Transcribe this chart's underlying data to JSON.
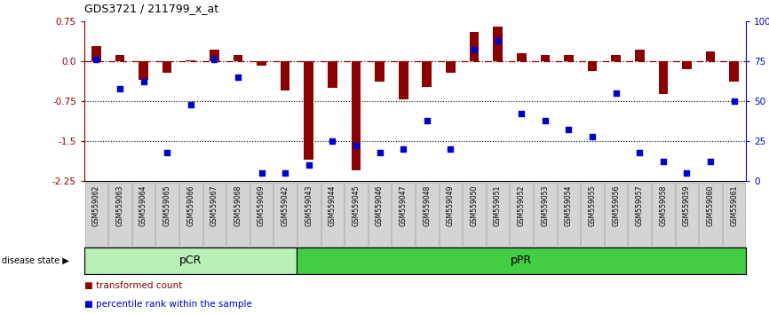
{
  "title": "GDS3721 / 211799_x_at",
  "samples": [
    "GSM559062",
    "GSM559063",
    "GSM559064",
    "GSM559065",
    "GSM559066",
    "GSM559067",
    "GSM559068",
    "GSM559069",
    "GSM559042",
    "GSM559043",
    "GSM559044",
    "GSM559045",
    "GSM559046",
    "GSM559047",
    "GSM559048",
    "GSM559049",
    "GSM559050",
    "GSM559051",
    "GSM559052",
    "GSM559053",
    "GSM559054",
    "GSM559055",
    "GSM559056",
    "GSM559057",
    "GSM559058",
    "GSM559059",
    "GSM559060",
    "GSM559061"
  ],
  "red_values": [
    0.28,
    0.12,
    -0.35,
    -0.22,
    0.02,
    0.22,
    0.12,
    -0.08,
    -0.55,
    -1.85,
    -0.5,
    -2.05,
    -0.38,
    -0.72,
    -0.48,
    -0.22,
    0.55,
    0.65,
    0.15,
    0.12,
    0.12,
    -0.18,
    0.12,
    0.22,
    -0.62,
    -0.15,
    0.18,
    -0.38
  ],
  "blue_values": [
    76,
    58,
    62,
    18,
    48,
    76,
    65,
    5,
    5,
    10,
    25,
    22,
    18,
    20,
    38,
    20,
    82,
    88,
    42,
    38,
    32,
    28,
    55,
    18,
    12,
    5,
    12,
    50
  ],
  "pcr_count": 9,
  "ppr_count": 19,
  "ylim_left": [
    -2.25,
    0.75
  ],
  "ylim_right": [
    0,
    100
  ],
  "yticks_left": [
    0.75,
    0.0,
    -0.75,
    -1.5,
    -2.25
  ],
  "yticks_right": [
    100,
    75,
    50,
    25,
    0
  ],
  "ytick_labels_right": [
    "100%",
    "75",
    "50",
    "25",
    "0"
  ],
  "red_color": "#8B0000",
  "blue_color": "#0000CC",
  "pcr_color": "#b8f0b8",
  "ppr_color": "#44cc44",
  "title_fontsize": 9,
  "legend1": "transformed count",
  "legend2": "percentile rank within the sample"
}
